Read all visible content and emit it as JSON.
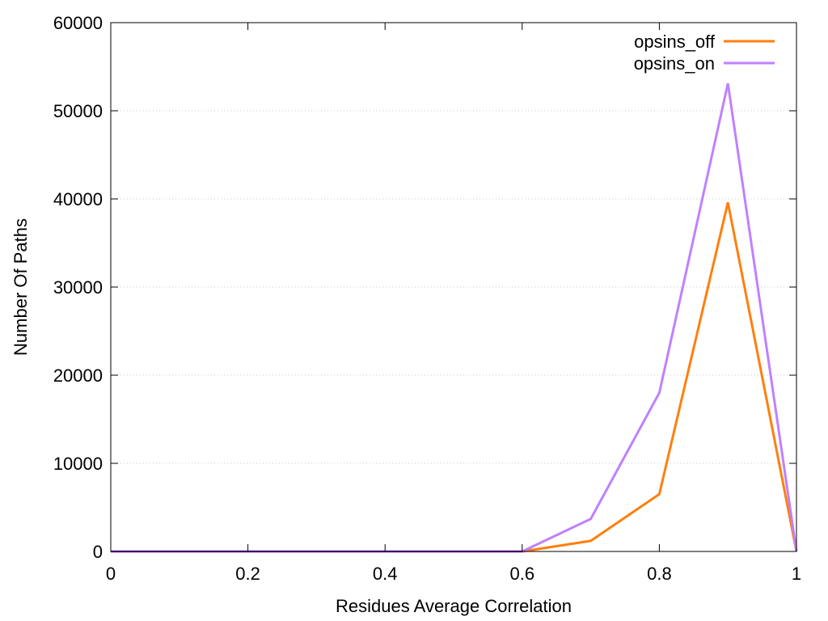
{
  "chart_data": {
    "type": "line",
    "title": "",
    "xlabel": "Residues Average Correlation",
    "ylabel": "Number Of Paths",
    "xlim": [
      0,
      1
    ],
    "ylim": [
      0,
      60000
    ],
    "x_ticks": [
      0,
      0.2,
      0.4,
      0.6,
      0.8,
      1
    ],
    "x_tick_labels": [
      "0",
      "0.2",
      "0.4",
      "0.6",
      "0.8",
      "1"
    ],
    "y_ticks": [
      0,
      10000,
      20000,
      30000,
      40000,
      50000,
      60000
    ],
    "y_tick_labels": [
      "0",
      "10000",
      "20000",
      "30000",
      "40000",
      "50000",
      "60000"
    ],
    "grid": "horizontal dotted",
    "legend_position": "top-right",
    "x": [
      0,
      0.1,
      0.2,
      0.3,
      0.4,
      0.5,
      0.6,
      0.7,
      0.8,
      0.9,
      1.0
    ],
    "series": [
      {
        "name": "opsins_off",
        "color": "#ff7f0e",
        "values": [
          0,
          0,
          0,
          0,
          0,
          0,
          0,
          1200,
          6500,
          39600,
          0
        ]
      },
      {
        "name": "opsins_on",
        "color": "#c080ff",
        "values": [
          0,
          0,
          0,
          0,
          0,
          0,
          0,
          3700,
          18000,
          53100,
          0
        ]
      }
    ],
    "baseline_color": "#7b2ab0"
  }
}
